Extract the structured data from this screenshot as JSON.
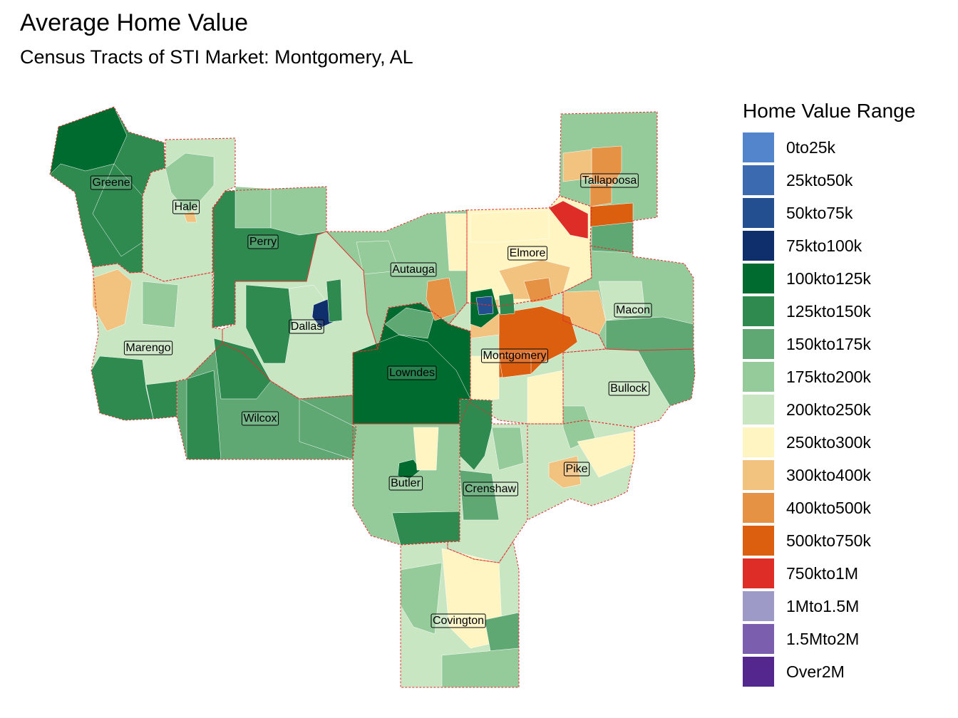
{
  "header": {
    "title": "Average Home Value",
    "subtitle": "Census Tracts of STI Market: Montgomery, AL"
  },
  "legend": {
    "title": "Home Value Range",
    "items": [
      {
        "label": "0to25k",
        "color": "#5285cc"
      },
      {
        "label": "25kto50k",
        "color": "#3b6ab0"
      },
      {
        "label": "50kto75k",
        "color": "#234e8f"
      },
      {
        "label": "75kto100k",
        "color": "#0e2f6c"
      },
      {
        "label": "100kto125k",
        "color": "#006b2f"
      },
      {
        "label": "125kto150k",
        "color": "#2f8a50"
      },
      {
        "label": "150kto175k",
        "color": "#5fa874"
      },
      {
        "label": "175kto200k",
        "color": "#95ca9a"
      },
      {
        "label": "200kto250k",
        "color": "#c8e6c2"
      },
      {
        "label": "250kto300k",
        "color": "#fff5c2"
      },
      {
        "label": "300kto400k",
        "color": "#f2c27f"
      },
      {
        "label": "400kto500k",
        "color": "#e69245"
      },
      {
        "label": "500kto750k",
        "color": "#db5f0f"
      },
      {
        "label": "750kto1M",
        "color": "#de2d26"
      },
      {
        "label": "1Mto1.5M",
        "color": "#9e9ac8"
      },
      {
        "label": "1.5Mto2M",
        "color": "#7b5fae"
      },
      {
        "label": "Over2M",
        "color": "#54278f"
      }
    ]
  },
  "counties": [
    {
      "name": "Greene",
      "fill": "#2f8a50"
    },
    {
      "name": "Hale",
      "fill": "#c8e6c2"
    },
    {
      "name": "Perry",
      "fill": "#2f8a50"
    },
    {
      "name": "Marengo",
      "fill": "#c8e6c2"
    },
    {
      "name": "Dallas",
      "fill": "#c8e6c2"
    },
    {
      "name": "Wilcox",
      "fill": "#5fa874"
    },
    {
      "name": "Lowndes",
      "fill": "#006b2f"
    },
    {
      "name": "Autauga",
      "fill": "#95ca9a"
    },
    {
      "name": "Elmore",
      "fill": "#fff5c2"
    },
    {
      "name": "Tallapoosa",
      "fill": "#95ca9a"
    },
    {
      "name": "Macon",
      "fill": "#95ca9a"
    },
    {
      "name": "Montgomery",
      "fill": "#c8e6c2"
    },
    {
      "name": "Bullock",
      "fill": "#c8e6c2"
    },
    {
      "name": "Butler",
      "fill": "#95ca9a"
    },
    {
      "name": "Crenshaw",
      "fill": "#c8e6c2"
    },
    {
      "name": "Pike",
      "fill": "#c8e6c2"
    },
    {
      "name": "Covington",
      "fill": "#c8e6c2"
    }
  ]
}
